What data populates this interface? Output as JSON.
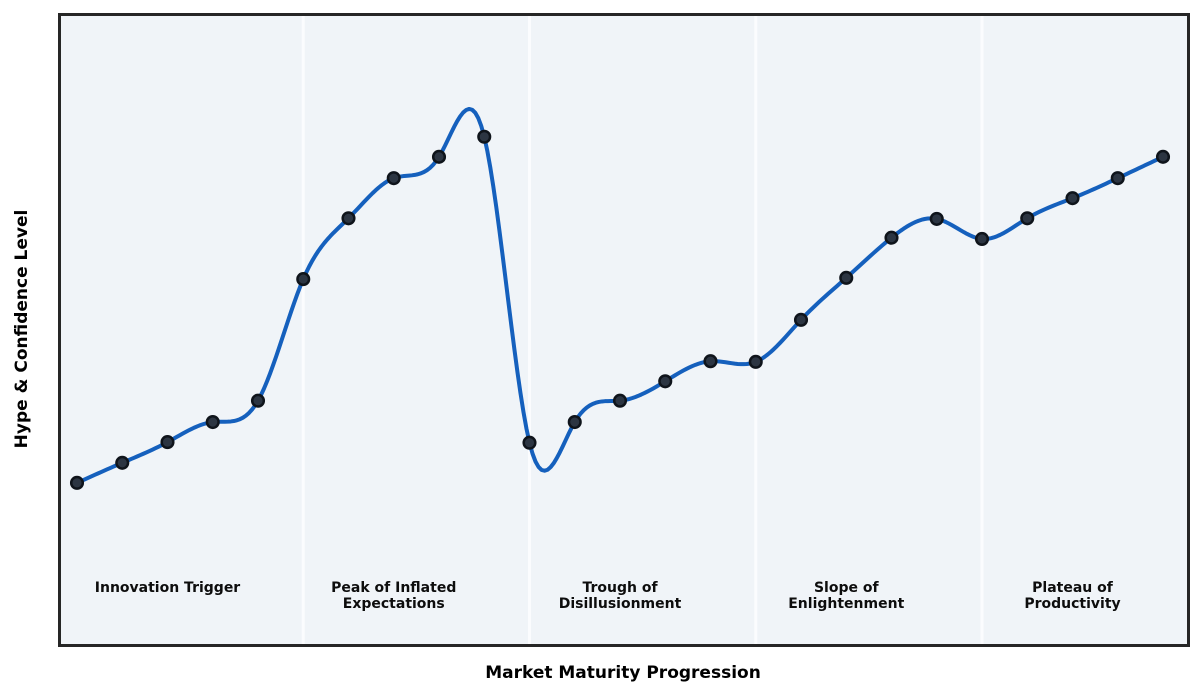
{
  "chart_data": {
    "type": "line",
    "xlabel": "Market Maturity Progression",
    "ylabel": "Hype & Confidence Level",
    "x": [
      0,
      1,
      2,
      3,
      4,
      5,
      6,
      7,
      8,
      9,
      10,
      11,
      12,
      13,
      14,
      15,
      16,
      17,
      18,
      19,
      20,
      21,
      22,
      23,
      24
    ],
    "values": [
      25.7,
      28.9,
      32.2,
      35.4,
      38.8,
      58.2,
      67.9,
      74.3,
      77.7,
      80.9,
      32.1,
      35.4,
      38.8,
      41.9,
      45.1,
      45.0,
      51.7,
      58.4,
      64.8,
      67.8,
      64.6,
      67.9,
      71.1,
      74.3,
      77.7
    ],
    "ylim": [
      0,
      100
    ],
    "xlim": [
      -0.4,
      24.5
    ],
    "grid": false,
    "legend": false,
    "line_style": "smooth-spline",
    "markers": true,
    "divider_x": [
      5,
      10,
      15,
      20
    ],
    "phases": [
      {
        "label": "Innovation Trigger",
        "label_x": 2,
        "x_start": 0,
        "x_end": 5
      },
      {
        "label": "Peak of Inflated\nExpectations",
        "label_x": 7,
        "x_start": 5,
        "x_end": 10
      },
      {
        "label": "Trough of\nDisillusionment",
        "label_x": 12,
        "x_start": 10,
        "x_end": 15
      },
      {
        "label": "Slope of\nEnlightenment",
        "label_x": 17,
        "x_start": 15,
        "x_end": 20
      },
      {
        "label": "Plateau of\nProductivity",
        "label_x": 22,
        "x_start": 20,
        "x_end": 24
      }
    ]
  },
  "style": {
    "line_color": "#1560bd",
    "marker_fill": "#2c3542",
    "marker_edge": "#0f141b",
    "band_color": "#f0f4f8",
    "divider_color": "#fbfcfe",
    "frame_color": "#262626",
    "label_color": "#0d0d0d"
  }
}
